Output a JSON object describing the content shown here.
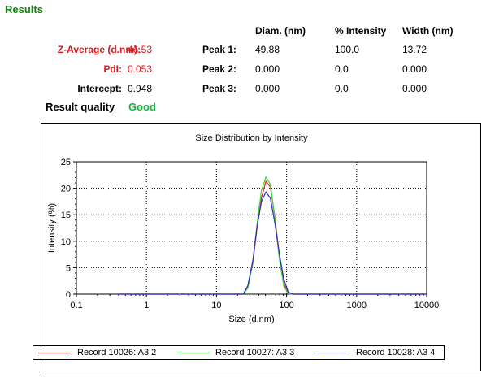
{
  "results": {
    "heading": "Results",
    "z_average": {
      "label": "Z-Average (d.nm):",
      "value": "46.53"
    },
    "pdi": {
      "label": "PdI:",
      "value": "0.053"
    },
    "intercept": {
      "label": "Intercept:",
      "value": "0.948"
    },
    "quality": {
      "label": "Result quality",
      "value": "Good"
    },
    "table": {
      "headers": {
        "diam": "Diam. (nm)",
        "intensity": "% Intensity",
        "width": "Width (nm)"
      },
      "rows": [
        {
          "label": "Peak 1:",
          "diam": "49.88",
          "intensity": "100.0",
          "width": "13.72"
        },
        {
          "label": "Peak 2:",
          "diam": "0.000",
          "intensity": "0.0",
          "width": "0.000"
        },
        {
          "label": "Peak 3:",
          "diam": "0.000",
          "intensity": "0.0",
          "width": "0.000"
        }
      ]
    }
  },
  "colors": {
    "heading": "#0f8a0f",
    "red_label": "#e0161b",
    "good": "#19b33b",
    "series": [
      "#e8241f",
      "#3fd23f",
      "#2b2bc4"
    ]
  },
  "chart_data": {
    "type": "line",
    "title": "Size Distribution by Intensity",
    "xlabel": "Size (d.nm)",
    "ylabel": "Intensity (%)",
    "x_scale": "log",
    "xlim": [
      0.1,
      10000
    ],
    "ylim": [
      0,
      25
    ],
    "x_ticks": [
      0.1,
      1,
      10,
      100,
      1000,
      10000
    ],
    "x_tick_labels": [
      "0.1",
      "1",
      "10",
      "100",
      "1000",
      "10000"
    ],
    "y_ticks": [
      0,
      5,
      10,
      15,
      20,
      25
    ],
    "y_tick_labels": [
      "0",
      "5",
      "10",
      "15",
      "20",
      "25"
    ],
    "grid": true,
    "legend_position": "bottom",
    "series": [
      {
        "name": "Record 10026: A3 2",
        "color": "#e8241f",
        "x": [
          0.4,
          10,
          24,
          28,
          33,
          37.8,
          43.8,
          50.7,
          58.8,
          68.1,
          78.8,
          91.3,
          105.7,
          122.4,
          10000
        ],
        "y": [
          0,
          0,
          0,
          1.2,
          5.8,
          12.4,
          18.2,
          21.3,
          20.2,
          14.6,
          7.3,
          2.0,
          0.1,
          0,
          0
        ]
      },
      {
        "name": "Record 10027: A3 3",
        "color": "#3fd23f",
        "x": [
          0.4,
          10,
          24,
          28,
          33,
          37.8,
          43.8,
          50.7,
          58.8,
          68.1,
          78.8,
          91.3,
          105.7,
          122.4,
          10000
        ],
        "y": [
          0,
          0,
          0,
          1.1,
          6.0,
          13.2,
          19.6,
          22.1,
          20.7,
          14.4,
          6.6,
          1.5,
          0.1,
          0,
          0
        ]
      },
      {
        "name": "Record 10028: A3 4",
        "color": "#2b2bc4",
        "x": [
          0.4,
          10,
          24,
          28,
          33,
          37.8,
          43.8,
          50.7,
          58.8,
          68.1,
          78.8,
          91.3,
          105.7,
          122.4,
          10000
        ],
        "y": [
          0,
          0,
          0,
          1.6,
          6.4,
          12.6,
          17.5,
          19.3,
          18.1,
          13.4,
          7.6,
          2.8,
          0.4,
          0,
          0
        ]
      }
    ]
  }
}
